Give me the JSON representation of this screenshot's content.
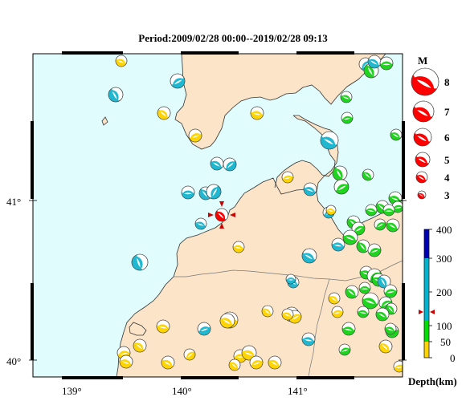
{
  "title": "Period:2009/02/28 00:00--2019/02/28 09:13",
  "map": {
    "lon_ticks": [
      "139°",
      "140°",
      "141°"
    ],
    "lat_ticks": [
      "41°",
      "40°"
    ],
    "sea_color": "#e0fcfc",
    "land_color": "#fbe4c8"
  },
  "magnitude_legend": {
    "title": "M",
    "entries": [
      "8",
      "7",
      "6",
      "5",
      "4",
      "3"
    ],
    "color": "#ff0000"
  },
  "depth_scale": {
    "labels": [
      "400",
      "300",
      "200",
      "100",
      "50",
      "0"
    ],
    "unit": "Depth(km)",
    "colors": {
      "0-50": "#ffd400",
      "50-100": "#00e000",
      "100-300": "#00b4d0",
      "300-400": "#0000b4"
    }
  },
  "mechanism_colors": {
    "yellow": "#ffd400",
    "green": "#1ed41e",
    "cyan": "#20b8d0",
    "red": "#ff0000"
  }
}
